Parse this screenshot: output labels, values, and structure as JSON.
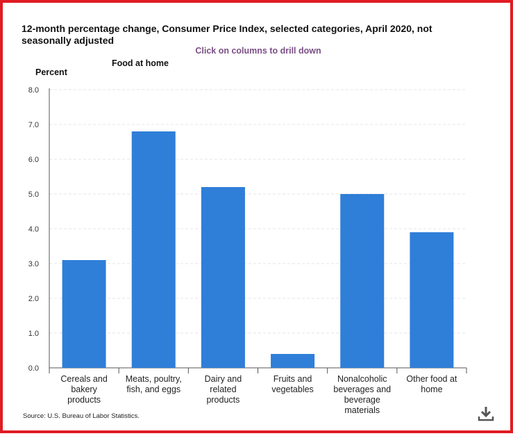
{
  "header": {
    "title": "12-month percentage change, Consumer Price Index, selected categories, April 2020, not seasonally adjusted",
    "drill_hint": "Click on columns to drill down",
    "y_unit": "Percent",
    "subtitle": "Food at home"
  },
  "footer": {
    "source": "Source: U.S. Bureau of Labor Statistics.",
    "download_icon": "download-icon"
  },
  "colors": {
    "bar": "#2f7ed8",
    "frame": "#e01b22",
    "hint": "#7b4f86"
  },
  "chart_data": {
    "type": "bar",
    "categories": [
      "Cereals and bakery products",
      "Meats, poultry, fish, and eggs",
      "Dairy and related products",
      "Fruits and vegetables",
      "Nonalcoholic beverages and beverage materials",
      "Other food at home"
    ],
    "category_label_lines": [
      [
        "Cereals and",
        "bakery",
        "products"
      ],
      [
        "Meats, poultry,",
        "fish, and eggs"
      ],
      [
        "Dairy and",
        "related",
        "products"
      ],
      [
        "Fruits and",
        "vegetables"
      ],
      [
        "Nonalcoholic",
        "beverages and",
        "beverage",
        "materials"
      ],
      [
        "Other food at",
        "home"
      ]
    ],
    "values": [
      3.1,
      6.8,
      5.2,
      0.4,
      5.0,
      3.9
    ],
    "ylim": [
      0,
      8
    ],
    "yticks": [
      "0.0",
      "1.0",
      "2.0",
      "3.0",
      "4.0",
      "5.0",
      "6.0",
      "7.0",
      "8.0"
    ],
    "ylabel": "Percent",
    "grid": true,
    "legend": "none"
  }
}
